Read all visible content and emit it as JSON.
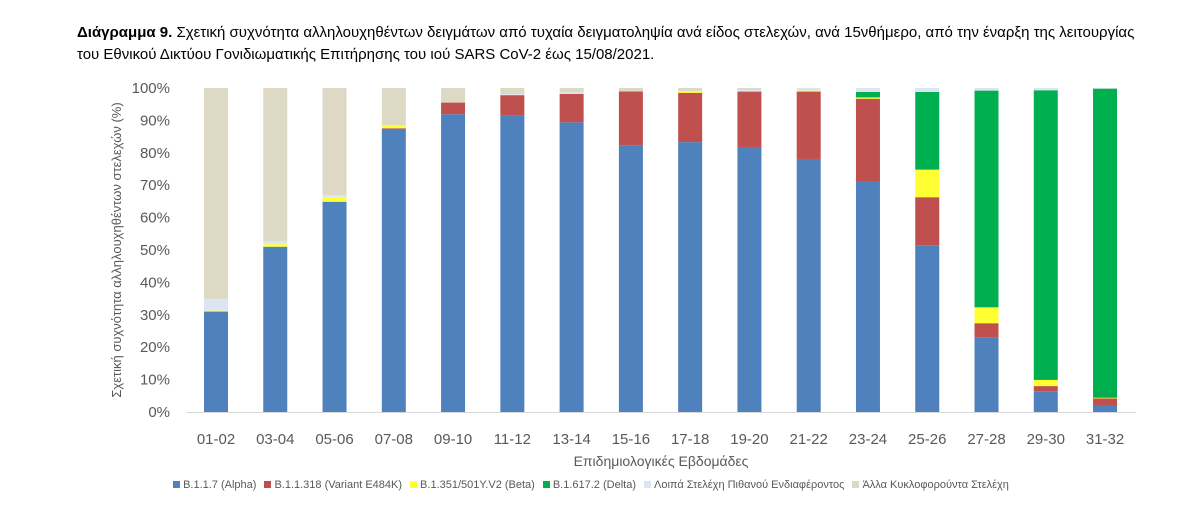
{
  "title": {
    "prefix": "Διάγραμμα 9.",
    "text": " Σχετική συχνότητα αλληλουχηθέντων δειγμάτων από τυχαία δειγματοληψία ανά είδος στελεχών, ανά 15νθήμερο, από την έναρξη της λειτουργίας του Εθνικού Δικτύου Γονιδιωματικής Επιτήρησης του ιού SARS CoV-2 έως 15/08/2021."
  },
  "chart_data": {
    "type": "bar",
    "stacked": true,
    "xlabel": "Επιδημιολογικές Εβδομάδες",
    "ylabel": "Σχετική συχνότητα αλληλουχηθέντων στελεχών (%)",
    "ylim": [
      0,
      100
    ],
    "yticks": [
      "0%",
      "10%",
      "20%",
      "30%",
      "40%",
      "50%",
      "60%",
      "70%",
      "80%",
      "90%",
      "100%"
    ],
    "categories": [
      "01-02",
      "03-04",
      "05-06",
      "07-08",
      "09-10",
      "11-12",
      "13-14",
      "15-16",
      "17-18",
      "19-20",
      "21-22",
      "23-24",
      "25-26",
      "27-28",
      "29-30",
      "31-32"
    ],
    "legend_position": "bottom",
    "series": [
      {
        "name": "B.1.1.7 (Alpha)",
        "color": "#4f81bd",
        "values": [
          31.0,
          51.0,
          64.9,
          87.4,
          91.9,
          91.4,
          89.4,
          82.3,
          83.3,
          81.8,
          78.1,
          71.3,
          51.5,
          23.1,
          6.4,
          2.0
        ]
      },
      {
        "name": "B.1.1.318 (Variant E484K)",
        "color": "#c0504d",
        "values": [
          0,
          0,
          0,
          0.2,
          3.6,
          6.4,
          8.8,
          16.5,
          15.2,
          17.1,
          20.8,
          25.4,
          14.8,
          4.3,
          1.6,
          2.2
        ]
      },
      {
        "name": "B.1.351/501Y.V2 (Beta)",
        "color": "#ffff33",
        "values": [
          0.3,
          0.8,
          1.2,
          0.9,
          0,
          0,
          0,
          0,
          0.5,
          0,
          0.3,
          0.4,
          8.5,
          4.9,
          1.9,
          0.2
        ]
      },
      {
        "name": "B.1.617.2 (Delta)",
        "color": "#00b050",
        "values": [
          0,
          0,
          0,
          0,
          0,
          0,
          0,
          0.2,
          0,
          0,
          0,
          1.7,
          24.0,
          66.9,
          89.4,
          95.4
        ]
      },
      {
        "name": "Λοιπά Στελέχη Πιθανού Ενδιαφέροντος",
        "color": "#dce6f2",
        "values": [
          3.6,
          1.0,
          0.8,
          0,
          0,
          0.3,
          0.5,
          0,
          0.1,
          0.5,
          0.8,
          1.2,
          1.2,
          0.8,
          0.7,
          0.2
        ]
      },
      {
        "name": "Άλλα Κυκλοφορούντα Στελέχη",
        "color": "#ddd9c4",
        "values": [
          65.1,
          47.2,
          33.1,
          11.5,
          4.5,
          1.9,
          1.3,
          1.0,
          0.9,
          0.6,
          0,
          0,
          0,
          0,
          0,
          0
        ]
      }
    ]
  }
}
